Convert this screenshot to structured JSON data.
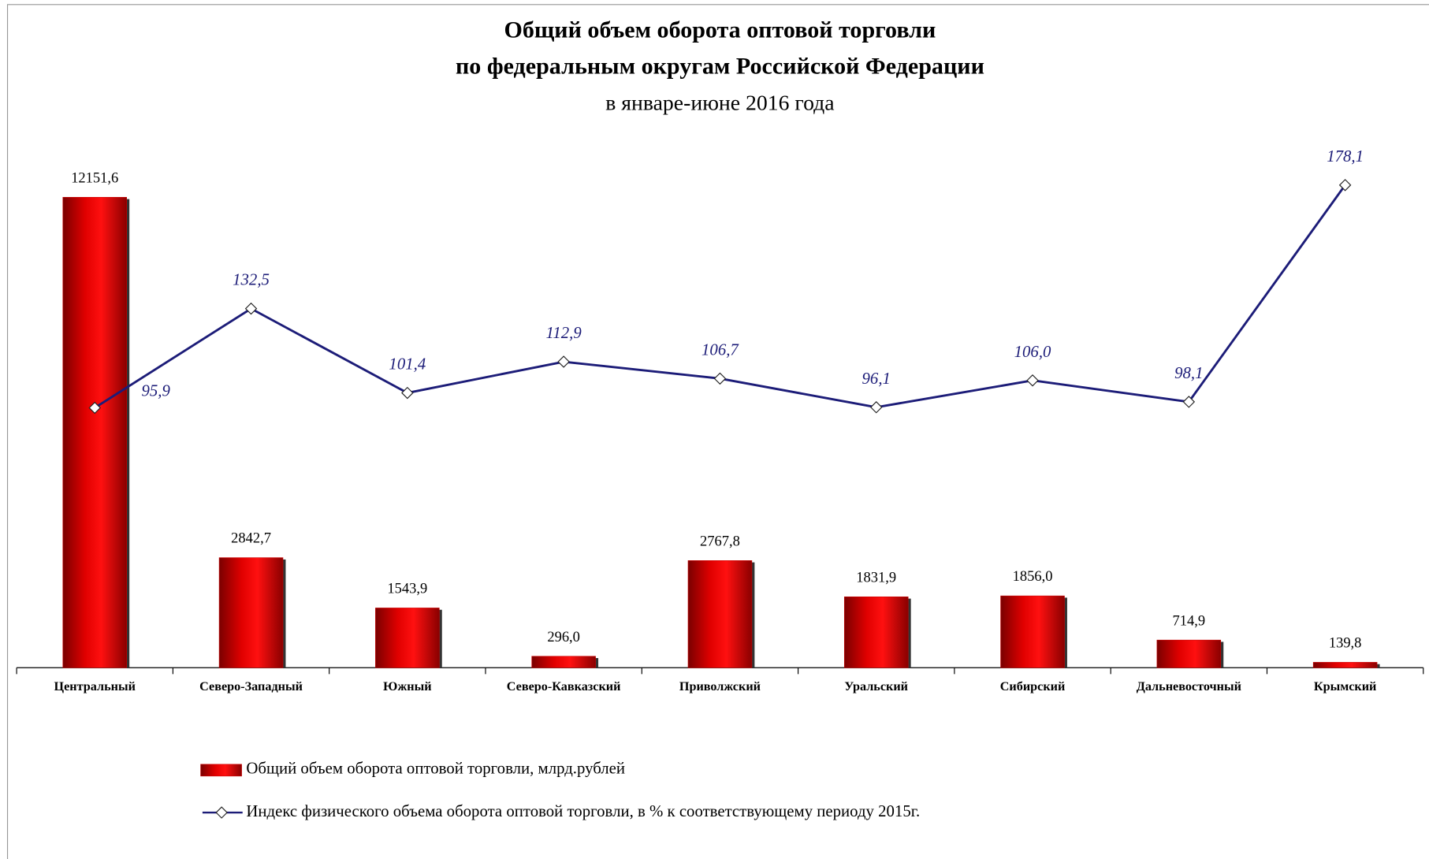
{
  "chart_data": {
    "type": "bar-line",
    "title": "Общий объем оборота оптовой торговли",
    "title_line2": "по федеральным округам Российской Федерации",
    "subtitle": "в январе-июне  2016 года",
    "categories": [
      "Центральный",
      "Северо-Западный",
      "Южный",
      "Северо-Кавказский",
      "Приволжский",
      "Уральский",
      "Сибирский",
      "Дальневосточный",
      "Крымский"
    ],
    "series": [
      {
        "name": "Общий объем оборота оптовой торговли, млрд.рублей",
        "color": "#cc0000",
        "type": "bar",
        "values": [
          12151.6,
          2842.7,
          1543.9,
          296.0,
          2767.8,
          1831.9,
          1856.0,
          714.9,
          139.8
        ],
        "value_labels": [
          "12151,6",
          "2842,7",
          "1543,9",
          "296,0",
          "2767,8",
          "1831,9",
          "1856,0",
          "714,9",
          "139,8"
        ]
      },
      {
        "name": "Индекс физического объема оборота оптовой торговли, в % к соответствующему периоду 2015г.",
        "color": "#1c1c78",
        "type": "line",
        "axis": "y2",
        "values": [
          95.9,
          132.5,
          101.4,
          112.9,
          106.7,
          96.1,
          106.0,
          98.1,
          178.1
        ],
        "value_labels": [
          "95,9",
          "132,5",
          "101,4",
          "112,9",
          "106,7",
          "96,1",
          "106,0",
          "98,1",
          "178,1"
        ]
      }
    ],
    "ylim": [
      0,
      14000
    ],
    "y2lim": [
      0,
      200
    ],
    "legend": "bottom"
  }
}
